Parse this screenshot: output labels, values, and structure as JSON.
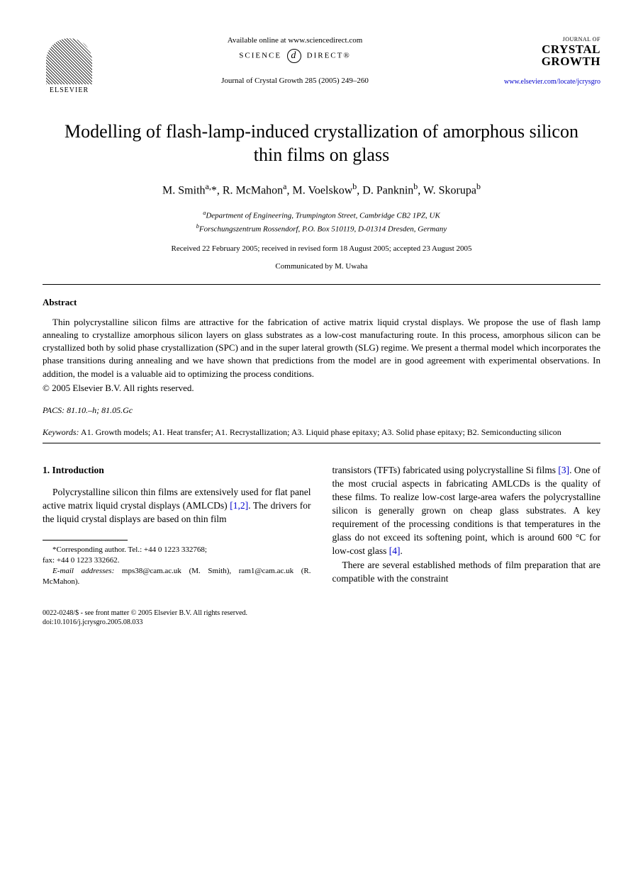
{
  "header": {
    "elsevier": "ELSEVIER",
    "available_online": "Available online at www.sciencedirect.com",
    "science_direct_left": "SCIENCE",
    "science_direct_right": "DIRECT®",
    "sd_icon": "d",
    "journal_ref": "Journal of Crystal Growth 285 (2005) 249–260",
    "journal_of": "JOURNAL OF",
    "crystal": "CRYSTAL",
    "growth": "GROWTH",
    "journal_link": "www.elsevier.com/locate/jcrysgro"
  },
  "title": "Modelling of flash-lamp-induced crystallization of amorphous silicon thin films on glass",
  "authors_html": "M. Smith<sup>a,</sup>*, R. McMahon<sup>a</sup>, M. Voelskow<sup>b</sup>, D. Panknin<sup>b</sup>, W. Skorupa<sup>b</sup>",
  "affiliations": {
    "a": "<sup>a</sup>Department of Engineering, Trumpington Street, Cambridge CB2 1PZ, UK",
    "b": "<sup>b</sup>Forschungszentrum Rossendorf, P.O. Box 510119, D-01314 Dresden, Germany"
  },
  "dates": "Received 22 February 2005; received in revised form 18 August 2005; accepted 23 August 2005",
  "communicated": "Communicated by M. Uwaha",
  "abstract": {
    "heading": "Abstract",
    "text": "Thin polycrystalline silicon films are attractive for the fabrication of active matrix liquid crystal displays. We propose the use of flash lamp annealing to crystallize amorphous silicon layers on glass substrates as a low-cost manufacturing route. In this process, amorphous silicon can be crystallized both by solid phase crystallization (SPC) and in the super lateral growth (SLG) regime. We present a thermal model which incorporates the phase transitions during annealing and we have shown that predictions from the model are in good agreement with experimental observations. In addition, the model is a valuable aid to optimizing the process conditions.",
    "copyright": "© 2005 Elsevier B.V. All rights reserved."
  },
  "pacs": {
    "label": "PACS:",
    "value": " 81.10.–h; 81.05.Gc"
  },
  "keywords": {
    "label": "Keywords:",
    "value": " A1. Growth models; A1. Heat transfer; A1. Recrystallization; A3. Liquid phase epitaxy; A3. Solid phase epitaxy; B2. Semiconducting silicon"
  },
  "body": {
    "section_heading": "1. Introduction",
    "col1_para1_pre": "Polycrystalline silicon thin films are extensively used for flat panel active matrix liquid crystal displays (AMLCDs) ",
    "col1_ref1": "[1,2]",
    "col1_para1_post": ". The drivers for the liquid crystal displays are based on thin film",
    "col2_para1_pre": "transistors (TFTs) fabricated using polycrystalline Si films ",
    "col2_ref1": "[3]",
    "col2_para1_mid": ". One of the most crucial aspects in fabricating AMLCDs is the quality of these films. To realize low-cost large-area wafers the polycrystalline silicon is generally grown on cheap glass substrates. A key requirement of the processing conditions is that temperatures in the glass do not exceed its softening point, which is around 600 °C for low-cost glass ",
    "col2_ref2": "[4]",
    "col2_para1_post": ".",
    "col2_para2": "There are several established methods of film preparation that are compatible with the constraint"
  },
  "footnote": {
    "corresponding": "*Corresponding author. Tel.: +44 0 1223 332768;",
    "fax": "fax: +44 0 1223 332662.",
    "email_label": "E-mail addresses:",
    "emails": " mps38@cam.ac.uk (M. Smith), ram1@cam.ac.uk (R. McMahon)."
  },
  "footer": {
    "line1": "0022-0248/$ - see front matter © 2005 Elsevier B.V. All rights reserved.",
    "line2": "doi:10.1016/j.jcrysgro.2005.08.033"
  }
}
